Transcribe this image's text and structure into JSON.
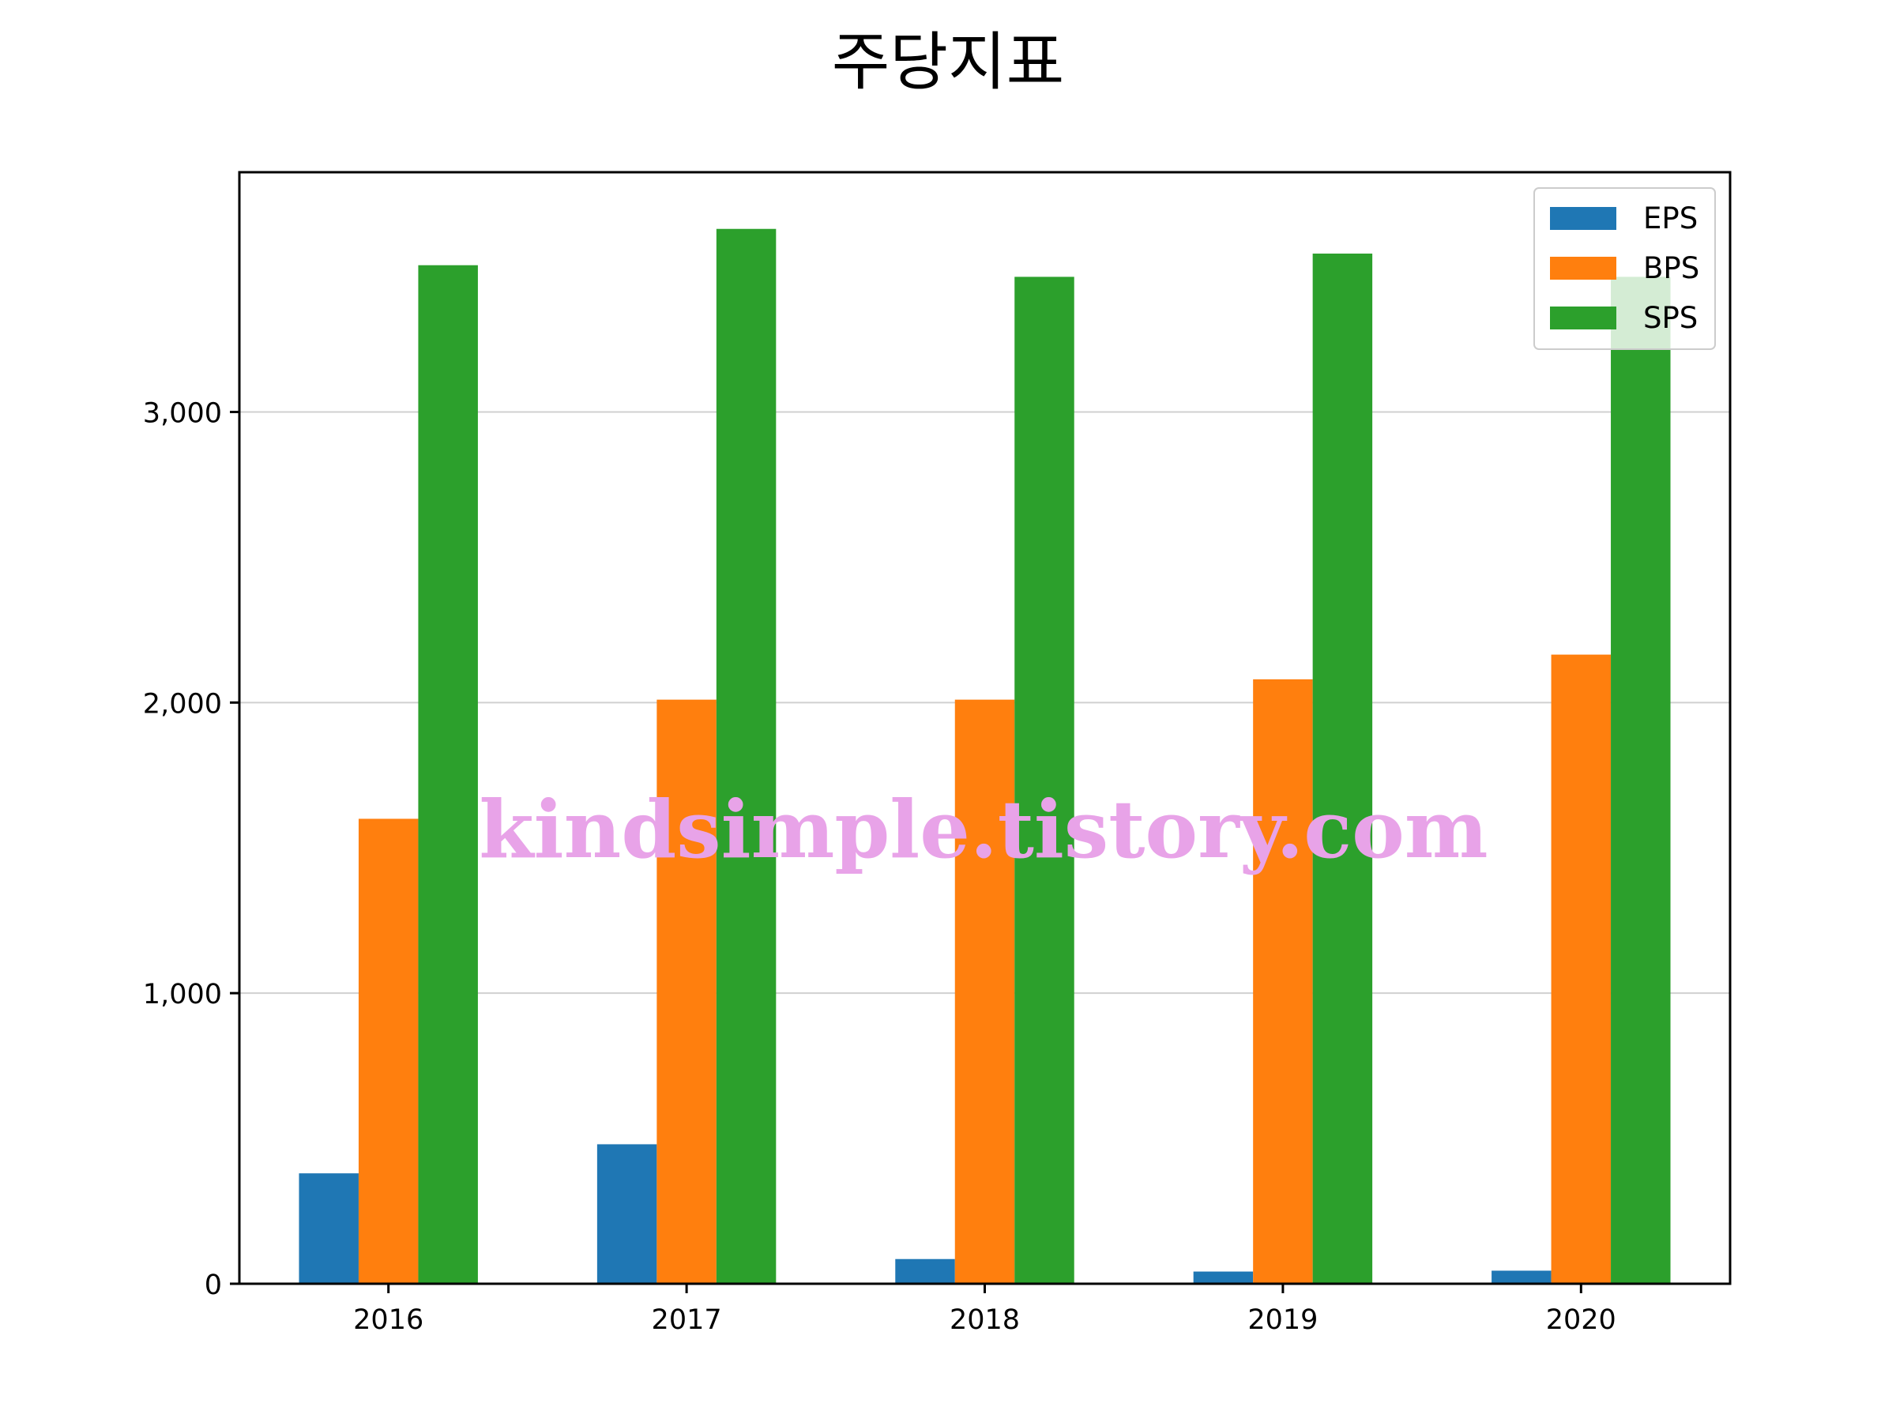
{
  "chart_data": {
    "type": "bar",
    "title": "주당지표",
    "xlabel": "",
    "ylabel": "",
    "categories": [
      "2016",
      "2017",
      "2018",
      "2019",
      "2020"
    ],
    "series": [
      {
        "name": "EPS",
        "color": "#1f77b4",
        "values": [
          380,
          480,
          85,
          42,
          45
        ]
      },
      {
        "name": "BPS",
        "color": "#ff7f0e",
        "values": [
          1600,
          2010,
          2010,
          2080,
          2165
        ]
      },
      {
        "name": "SPS",
        "color": "#2ca02c",
        "values": [
          3505,
          3630,
          3465,
          3545,
          3465
        ]
      }
    ],
    "ylim": [
      0,
      3825
    ],
    "yticks": [
      0,
      1000,
      2000,
      3000
    ],
    "ytick_labels": [
      "0",
      "1,000",
      "2,000",
      "3,000"
    ],
    "grid": "y",
    "legend_position": "top-right",
    "watermark": "kindsimple.tistory.com"
  }
}
